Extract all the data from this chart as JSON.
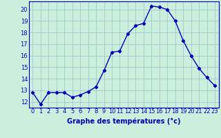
{
  "hours": [
    0,
    1,
    2,
    3,
    4,
    5,
    6,
    7,
    8,
    9,
    10,
    11,
    12,
    13,
    14,
    15,
    16,
    17,
    18,
    19,
    20,
    21,
    22,
    23
  ],
  "temps": [
    12.8,
    11.8,
    12.8,
    12.8,
    12.8,
    12.4,
    12.6,
    12.9,
    13.3,
    14.7,
    16.3,
    16.4,
    17.9,
    18.6,
    18.8,
    20.3,
    20.2,
    20.0,
    19.0,
    17.3,
    16.0,
    14.9,
    14.1,
    13.4
  ],
  "line_color": "#0000bb",
  "marker": "D",
  "marker_size": 2.2,
  "bg_color": "#cceedd",
  "grid_color": "#99cccc",
  "xlabel": "Graphe des températures (°c)",
  "xlabel_color": "#0000bb",
  "xlabel_fontsize": 7,
  "tick_color": "#0000bb",
  "tick_fontsize": 6,
  "ylim": [
    11.5,
    20.7
  ],
  "yticks": [
    12,
    13,
    14,
    15,
    16,
    17,
    18,
    19,
    20
  ],
  "xlim": [
    -0.5,
    23.5
  ],
  "xticks": [
    0,
    1,
    2,
    3,
    4,
    5,
    6,
    7,
    8,
    9,
    10,
    11,
    12,
    13,
    14,
    15,
    16,
    17,
    18,
    19,
    20,
    21,
    22,
    23
  ],
  "spine_color": "#0000bb",
  "linewidth": 1.0
}
